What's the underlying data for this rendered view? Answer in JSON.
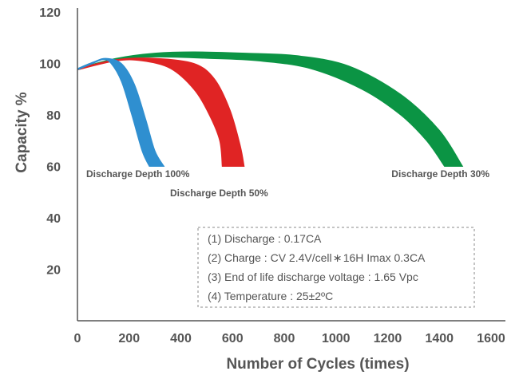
{
  "chart_data": {
    "type": "area",
    "title": "",
    "xlabel": "Number of Cycles (times)",
    "ylabel": "Capacity %",
    "xlim": [
      0,
      1600
    ],
    "ylim": [
      0,
      120
    ],
    "x_ticks": [
      "0",
      "200",
      "400",
      "600",
      "800",
      "1000",
      "1200",
      "1400",
      "1600"
    ],
    "y_ticks": [
      "20",
      "40",
      "60",
      "80",
      "100",
      "120"
    ],
    "grid": false,
    "series": [
      {
        "name": "Discharge Depth 100%",
        "color": "#2f8fd0",
        "upper": [
          [
            0,
            98
          ],
          [
            60,
            100.5
          ],
          [
            110,
            102
          ],
          [
            170,
            100
          ],
          [
            220,
            92
          ],
          [
            265,
            78
          ],
          [
            300,
            66
          ],
          [
            335,
            60
          ]
        ],
        "lower": [
          [
            0,
            97.5
          ],
          [
            60,
            100
          ],
          [
            100,
            101.5
          ],
          [
            130,
            100
          ],
          [
            170,
            93
          ],
          [
            210,
            80
          ],
          [
            250,
            66
          ],
          [
            278,
            60
          ]
        ]
      },
      {
        "name": "Discharge Depth 50%",
        "color": "#e02424",
        "upper": [
          [
            0,
            98
          ],
          [
            150,
            101.5
          ],
          [
            300,
            102
          ],
          [
            450,
            100
          ],
          [
            530,
            94
          ],
          [
            590,
            82
          ],
          [
            630,
            68
          ],
          [
            645,
            60
          ]
        ],
        "lower": [
          [
            0,
            97.5
          ],
          [
            150,
            101
          ],
          [
            250,
            101
          ],
          [
            360,
            98
          ],
          [
            450,
            90
          ],
          [
            510,
            80
          ],
          [
            550,
            70
          ],
          [
            560,
            60
          ]
        ]
      },
      {
        "name": "Discharge Depth 30%",
        "color": "#0b9444",
        "upper": [
          [
            0,
            98
          ],
          [
            150,
            102
          ],
          [
            300,
            104
          ],
          [
            450,
            104.5
          ],
          [
            650,
            104
          ],
          [
            850,
            103
          ],
          [
            1050,
            99
          ],
          [
            1250,
            88
          ],
          [
            1400,
            74
          ],
          [
            1490,
            60
          ]
        ],
        "lower": [
          [
            0,
            97.5
          ],
          [
            150,
            101.5
          ],
          [
            300,
            102.5
          ],
          [
            500,
            102
          ],
          [
            700,
            101
          ],
          [
            900,
            98
          ],
          [
            1100,
            90
          ],
          [
            1250,
            80
          ],
          [
            1350,
            70
          ],
          [
            1420,
            60
          ]
        ]
      }
    ],
    "annotations": [
      "(1) Discharge : 0.17CA",
      "(2) Charge : CV 2.4V/cell ∗ 16H Imax 0.3CA",
      "(3) End of life discharge voltage : 1.65 Vpc",
      "(4) Temperature : 25±2ºC"
    ],
    "annotation_box": "bottom-right"
  }
}
